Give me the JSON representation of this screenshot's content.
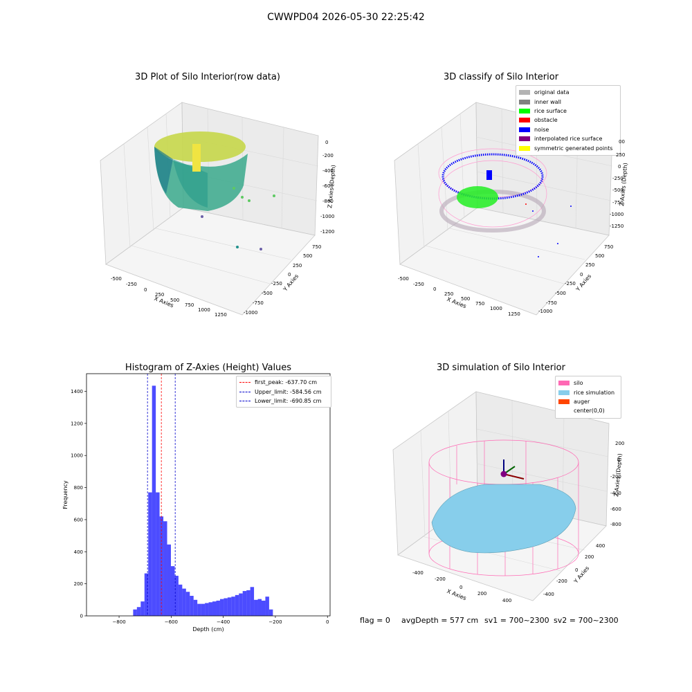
{
  "suptitle": "CWWPD04 2026-05-30 22:25:42",
  "plots": {
    "p1": {
      "title": "3D Plot of Silo Interior(row data)",
      "x_label": "X Axies",
      "y_label": "Y Axies",
      "z_label": "Z Axies (Depth)",
      "x_ticks": [
        "-500",
        "-250",
        "0",
        "250",
        "500",
        "750",
        "1000",
        "1250"
      ],
      "y_ticks": [
        "750",
        "500",
        "250",
        "0",
        "-250",
        "-500",
        "-750",
        "-1000"
      ],
      "z_ticks": [
        "0",
        "-200",
        "-400",
        "-600",
        "-800",
        "-1000",
        "-1200"
      ]
    },
    "p2": {
      "title": "3D classify of Silo Interior",
      "x_label": "X Axies",
      "y_label": "Y Axies",
      "z_label": "Z Axies (Depth)",
      "x_ticks": [
        "-500",
        "-250",
        "0",
        "250",
        "500",
        "750",
        "1000",
        "1250"
      ],
      "y_ticks": [
        "750",
        "500",
        "250",
        "0",
        "-250",
        "-500",
        "-750",
        "-1000"
      ],
      "z_ticks": [
        "250",
        "0",
        "-250",
        "-500",
        "-750",
        "-1000",
        "-1250"
      ],
      "z_tick_partial": "00",
      "legend": [
        {
          "label": "original data",
          "color": "#b3b3b3"
        },
        {
          "label": "inner wall",
          "color": "#808080"
        },
        {
          "label": "rice surface",
          "color": "#00ff00"
        },
        {
          "label": "obstacle",
          "color": "#ff0000"
        },
        {
          "label": "noise",
          "color": "#0000ff"
        },
        {
          "label": "interpolated rice surface",
          "color": "#800080"
        },
        {
          "label": "symmetric generated points",
          "color": "#ffff00"
        }
      ]
    },
    "p4": {
      "title": "3D simulation of Silo Interior",
      "x_label": "X Axies",
      "y_label": "Y Axies",
      "z_label": "Z Axies (Depth)",
      "x_ticks": [
        "-400",
        "-200",
        "0",
        "200",
        "400"
      ],
      "y_ticks": [
        "400",
        "200",
        "0",
        "-200",
        "-400"
      ],
      "z_ticks": [
        "200",
        "0",
        "-200",
        "-400",
        "-600",
        "-800"
      ],
      "legend": [
        {
          "label": "silo",
          "color": "#ff69b4"
        },
        {
          "label": "rice simulation",
          "color": "#87ceeb"
        },
        {
          "label": "auger",
          "color": "#ff4500"
        },
        {
          "label": "center(0,0)",
          "color": "#ffffff"
        }
      ]
    }
  },
  "chart_data": {
    "type": "bar",
    "title": "Histogram of Z-Axies (Height) Values",
    "xlabel": "Depth (cm)",
    "ylabel": "Frequency",
    "xlim": [
      -925,
      10
    ],
    "ylim": [
      0,
      1510
    ],
    "x_ticks": [
      -800,
      -600,
      -400,
      -200,
      0
    ],
    "y_ticks": [
      0,
      200,
      400,
      600,
      800,
      1000,
      1200,
      1400
    ],
    "bin_width": 14.5,
    "bin_start": -746,
    "values": [
      40,
      55,
      90,
      265,
      770,
      1435,
      770,
      620,
      590,
      445,
      310,
      250,
      195,
      170,
      150,
      125,
      100,
      75,
      75,
      80,
      85,
      90,
      95,
      105,
      110,
      115,
      120,
      130,
      140,
      155,
      160,
      180,
      100,
      105,
      95,
      120,
      40
    ],
    "color": "#0000ff",
    "lines": [
      {
        "label": "first_peak: -637.70 cm",
        "x": -637.7,
        "color": "#ff0000"
      },
      {
        "label": "Upper_limit: -584.56 cm",
        "x": -584.56,
        "color": "#0000cc"
      },
      {
        "label": "Lower_limit: -690.85 cm",
        "x": -690.85,
        "color": "#0000cc"
      }
    ],
    "legend_position": "top-right"
  },
  "footer": {
    "flag": "flag = 0",
    "avg_depth": "avgDepth = 577 cm",
    "sv1": "sv1 = 700~2300",
    "sv2": "sv2 = 700~2300"
  }
}
